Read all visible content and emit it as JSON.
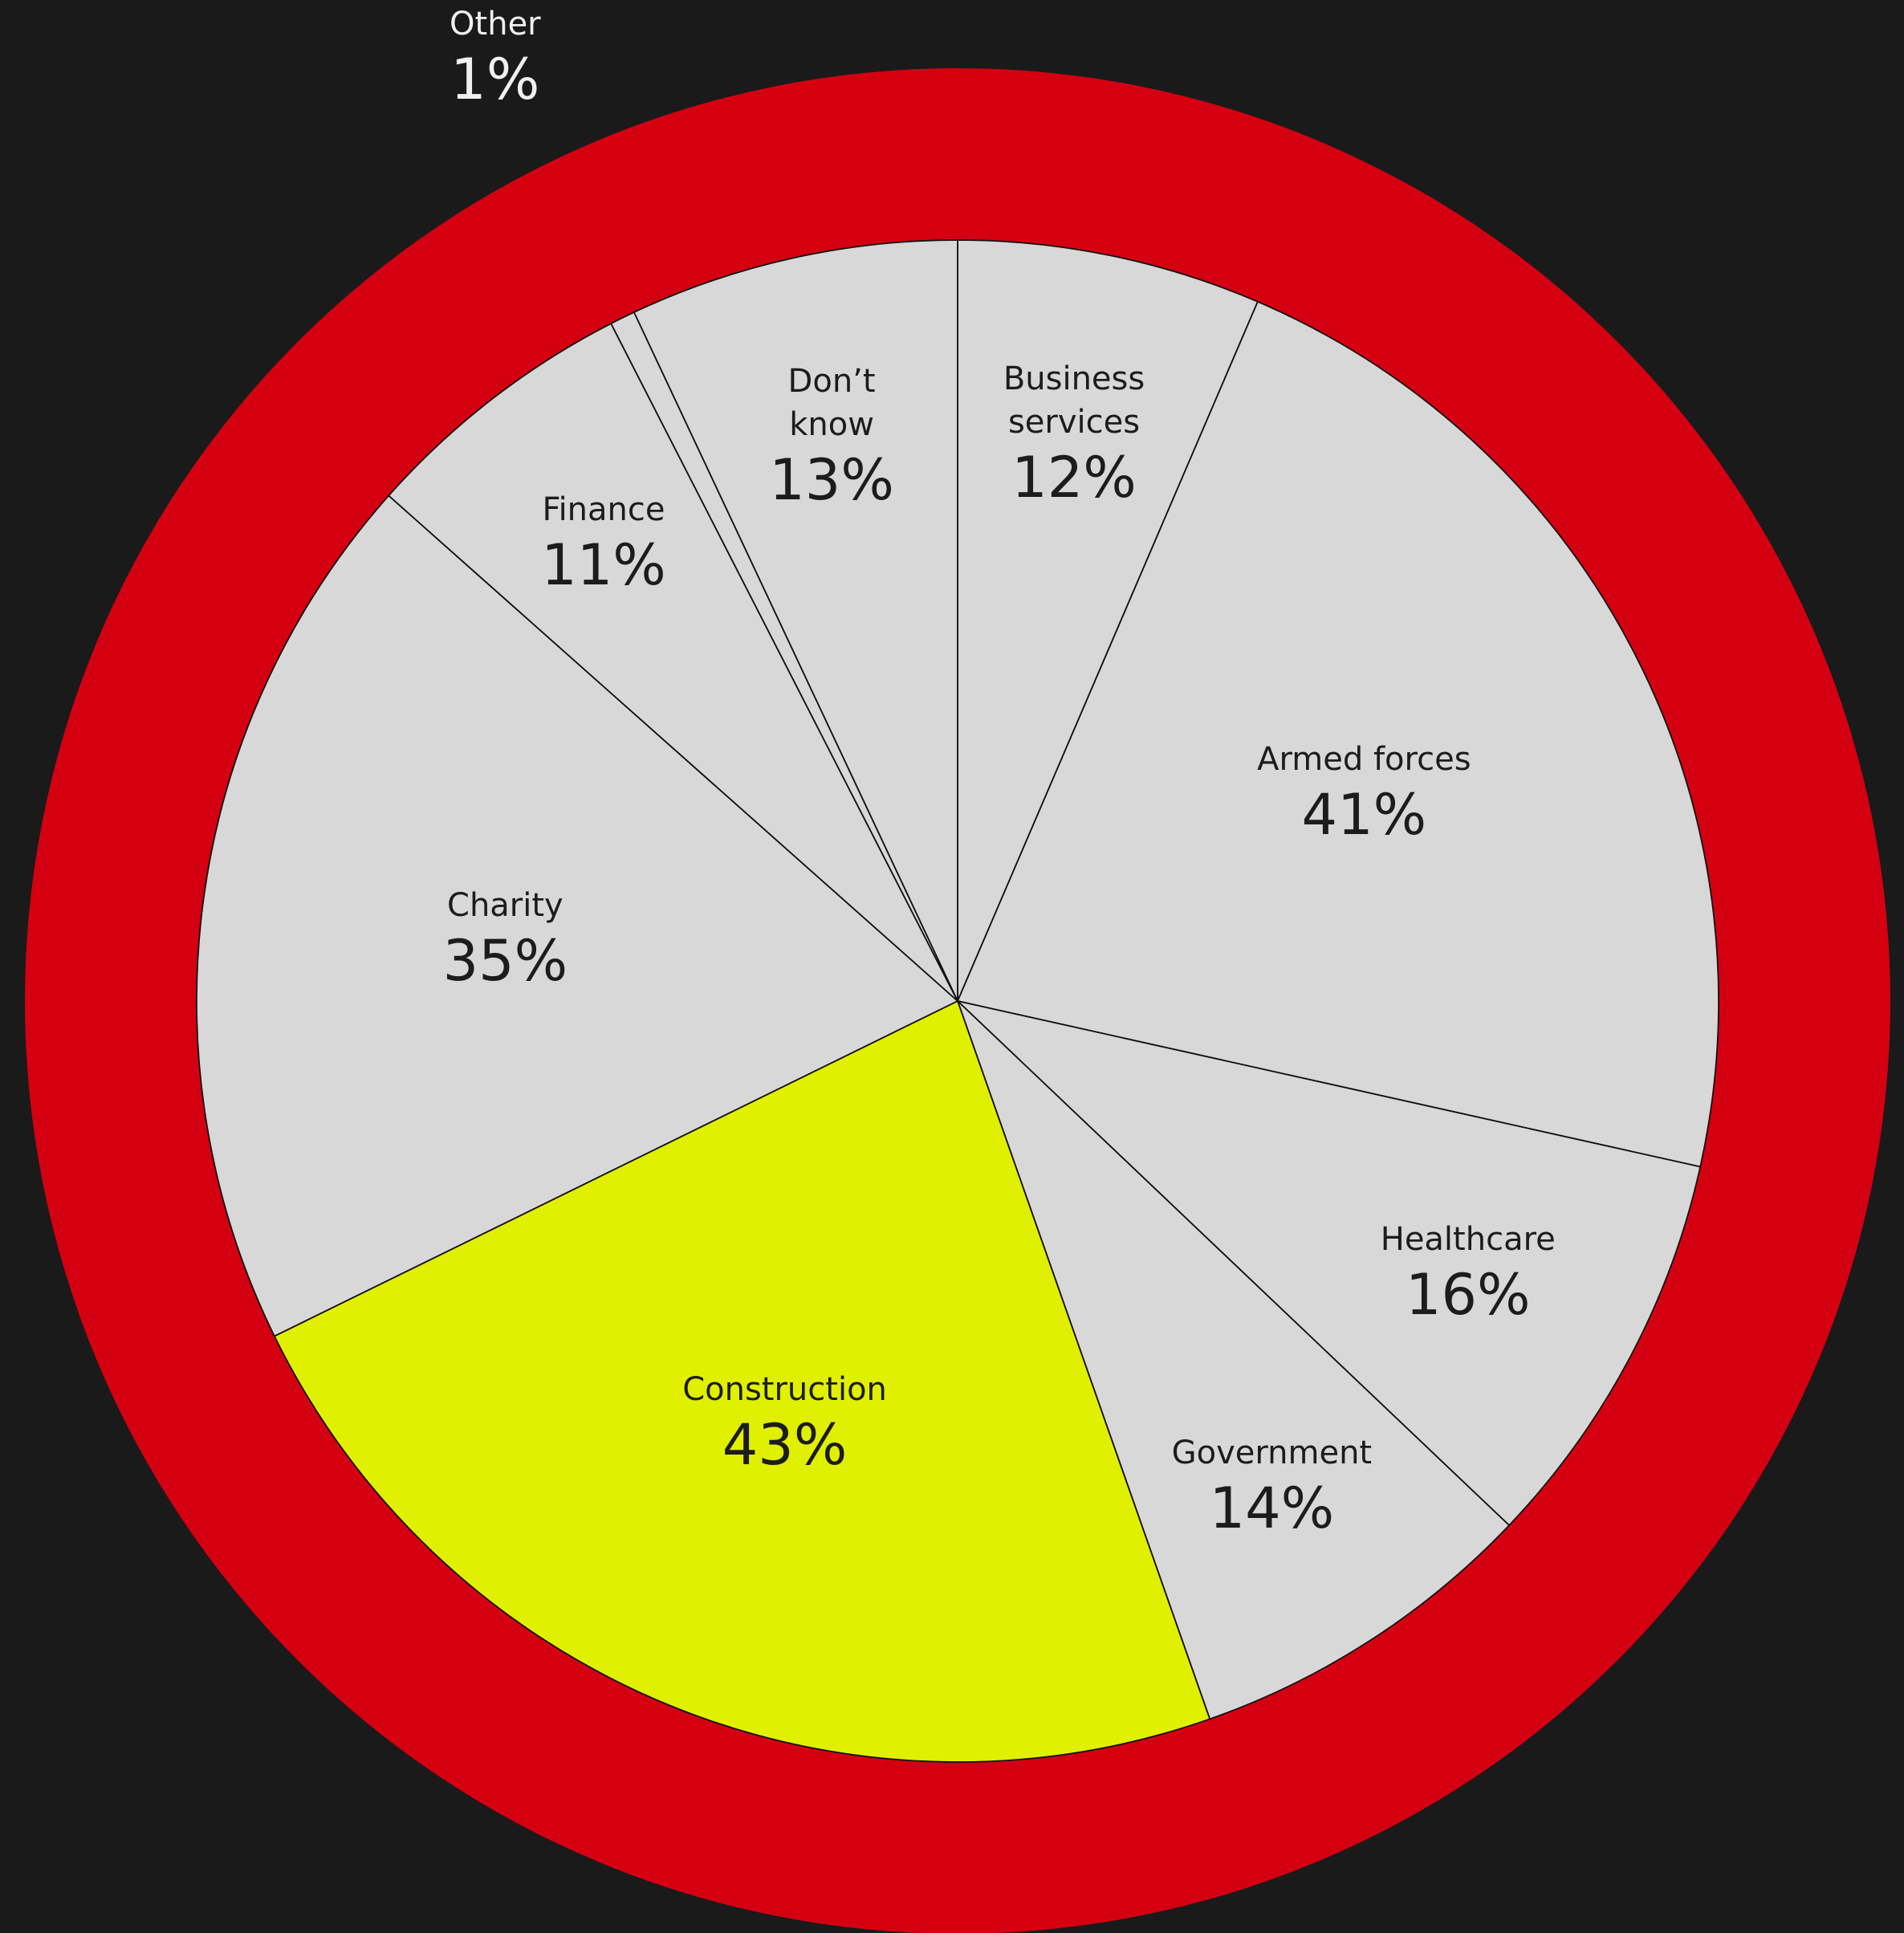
{
  "chart_data": {
    "type": "pie",
    "categories": [
      "Business\nservices",
      "Armed forces",
      "Healthcare",
      "Government",
      "Construction",
      "Charity",
      "Finance",
      "Other",
      "Don’t\nknow"
    ],
    "values": [
      12,
      41,
      16,
      14,
      43,
      35,
      11,
      1,
      13
    ],
    "value_labels": [
      "12%",
      "41%",
      "16%",
      "14%",
      "43%",
      "35%",
      "11%",
      "1%",
      "13%"
    ],
    "colors": [
      "#d8d8d8",
      "#d8d8d8",
      "#d8d8d8",
      "#d8d8d8",
      "#e0f000",
      "#d8d8d8",
      "#d8d8d8",
      "#d8d8d8",
      "#d8d8d8"
    ]
  }
}
